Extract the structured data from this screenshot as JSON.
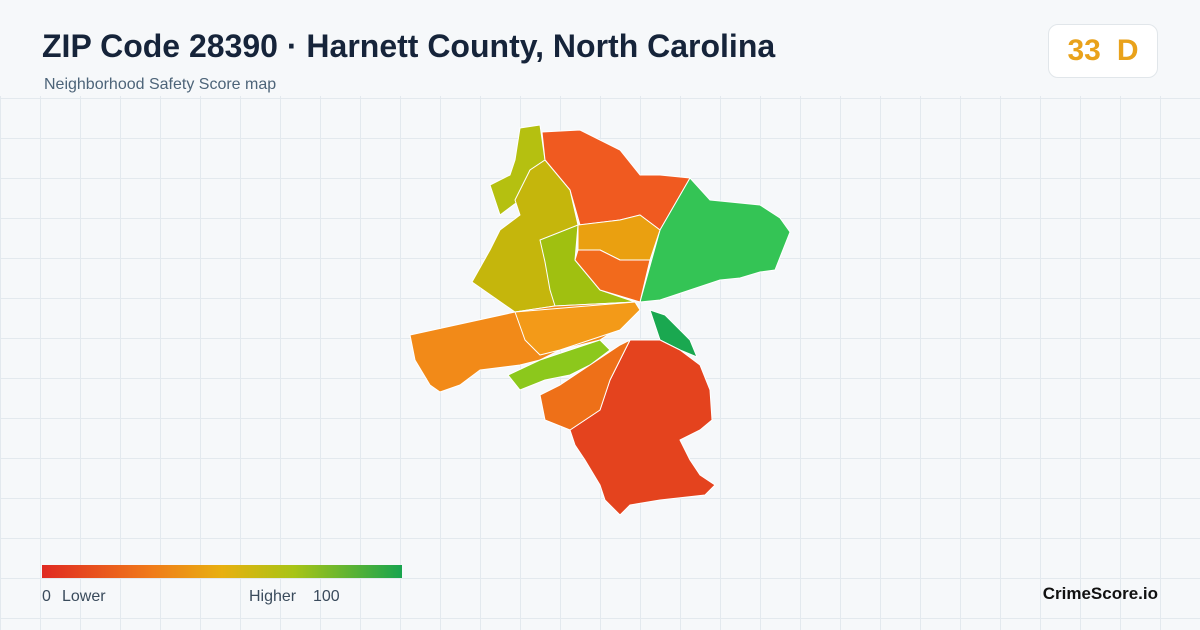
{
  "header": {
    "title": "ZIP Code 28390 · Harnett County, North Carolina",
    "subtitle": "Neighborhood Safety Score map"
  },
  "score": {
    "value": 33,
    "grade": "D"
  },
  "legend": {
    "min": 0,
    "min_label": "Lower",
    "max_label": "Higher",
    "max": 100
  },
  "brand": "CrimeScore.io"
}
